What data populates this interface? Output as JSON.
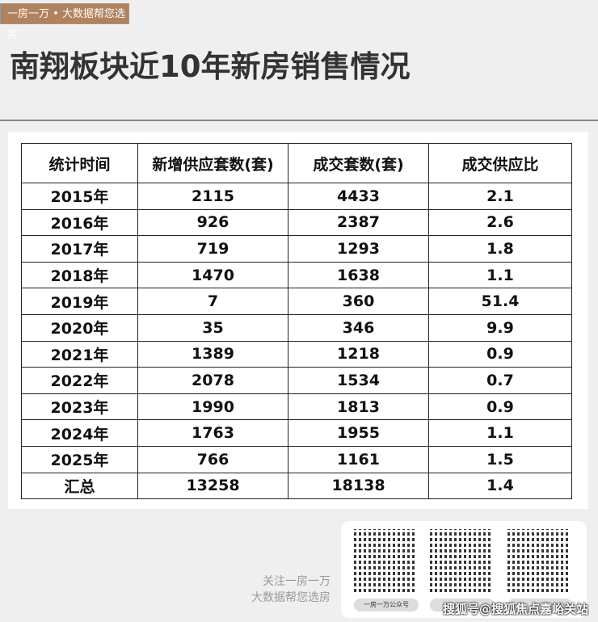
{
  "badge": "一房一万 • 大数据帮您选房",
  "title": "南翔板块近10年新房销售情况",
  "table": {
    "headers": [
      "统计时间",
      "新增供应套数(套)",
      "成交套数(套)",
      "成交供应比"
    ],
    "rows": [
      [
        "2015年",
        "2115",
        "4433",
        "2.1"
      ],
      [
        "2016年",
        "926",
        "2387",
        "2.6"
      ],
      [
        "2017年",
        "719",
        "1293",
        "1.8"
      ],
      [
        "2018年",
        "1470",
        "1638",
        "1.1"
      ],
      [
        "2019年",
        "7",
        "360",
        "51.4"
      ],
      [
        "2020年",
        "35",
        "346",
        "9.9"
      ],
      [
        "2021年",
        "1389",
        "1218",
        "0.9"
      ],
      [
        "2022年",
        "2078",
        "1534",
        "0.7"
      ],
      [
        "2023年",
        "1990",
        "1813",
        "0.9"
      ],
      [
        "2024年",
        "1763",
        "1955",
        "1.1"
      ],
      [
        "2025年",
        "766",
        "1161",
        "1.5"
      ],
      [
        "汇总",
        "13258",
        "18138",
        "1.4"
      ]
    ]
  },
  "footer": {
    "follow_line1": "关注一房一万",
    "follow_line2": "大数据帮您选房",
    "qr_labels": [
      "一房一万公众号",
      "",
      ""
    ],
    "watermark": "搜狐号@搜狐焦点嘉峪关站"
  }
}
